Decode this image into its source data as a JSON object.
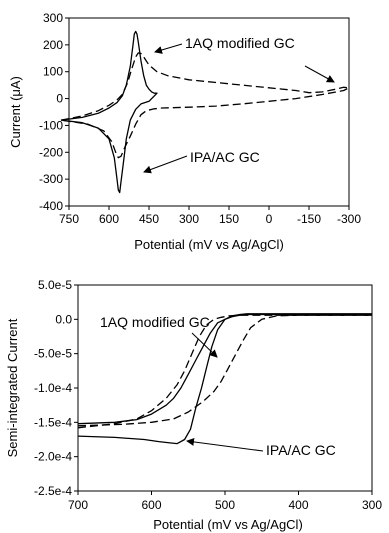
{
  "chart_data": [
    {
      "type": "line",
      "xlabel": "Potential (mV vs Ag/AgCl)",
      "ylabel": "Current (μA)",
      "xlim": [
        750,
        -300
      ],
      "ylim": [
        -400,
        300
      ],
      "x_ticks": [
        750,
        600,
        450,
        300,
        150,
        0,
        -150,
        -300
      ],
      "y_ticks": [
        300,
        200,
        100,
        0,
        -100,
        -200,
        -300,
        -400
      ],
      "x_tick_labels": [
        "750",
        "600",
        "450",
        "300",
        "150",
        "0",
        "-150",
        "-300"
      ],
      "y_tick_labels": [
        "300",
        "200",
        "100",
        "0",
        "-100",
        "-200",
        "-300",
        "-400"
      ],
      "grid": false,
      "annotations": [
        "1AQ modified GC",
        "IPA/AC GC"
      ],
      "series": [
        {
          "style": "dashed",
          "x": [
            780,
            700,
            640,
            600,
            570,
            550,
            530,
            515,
            500,
            490,
            480,
            470,
            460,
            450,
            420,
            380,
            300,
            150,
            0,
            -100,
            -150,
            -200,
            -250,
            -280,
            -300,
            -280,
            -200,
            -100,
            0,
            100,
            200,
            300,
            400,
            430,
            460,
            480,
            500,
            520,
            540,
            555,
            565,
            575,
            590,
            620,
            680,
            780
          ],
          "y": [
            -80,
            -65,
            -45,
            -25,
            -5,
            15,
            60,
            110,
            155,
            170,
            168,
            155,
            140,
            125,
            100,
            85,
            70,
            55,
            40,
            30,
            22,
            25,
            35,
            42,
            40,
            30,
            15,
            0,
            -10,
            -20,
            -28,
            -32,
            -35,
            -38,
            -45,
            -60,
            -95,
            -140,
            -180,
            -215,
            -220,
            -200,
            -160,
            -120,
            -95,
            -80
          ]
        },
        {
          "style": "solid",
          "x": [
            780,
            700,
            640,
            600,
            570,
            550,
            535,
            520,
            510,
            505,
            500,
            495,
            490,
            480,
            470,
            460,
            450,
            440,
            430,
            420,
            450,
            480,
            500,
            520,
            535,
            545,
            555,
            560,
            565,
            570,
            580,
            600,
            640,
            700,
            780
          ],
          "y": [
            -80,
            -70,
            -55,
            -35,
            -15,
            10,
            50,
            120,
            200,
            240,
            250,
            240,
            210,
            140,
            85,
            50,
            35,
            25,
            20,
            20,
            -10,
            -20,
            -40,
            -80,
            -150,
            -230,
            -310,
            -350,
            -340,
            -300,
            -220,
            -150,
            -110,
            -90,
            -80
          ]
        }
      ]
    },
    {
      "type": "line",
      "xlabel": "Potential (mV vs Ag/AgCl)",
      "ylabel": "Semi-integrated Current",
      "xlim": [
        700,
        300
      ],
      "ylim": [
        -0.00025,
        5e-05
      ],
      "x_ticks": [
        700,
        600,
        500,
        400,
        300
      ],
      "y_ticks": [
        5e-05,
        0,
        -5e-05,
        -0.0001,
        -0.00015,
        -0.0002,
        -0.00025
      ],
      "x_tick_labels": [
        "700",
        "600",
        "500",
        "400",
        "300"
      ],
      "y_tick_labels": [
        "5.0e-5",
        "0.0",
        "-5.0e-5",
        "-1.0e-4",
        "-1.5e-4",
        "-2.0e-4",
        "-2.5e-4"
      ],
      "grid": false,
      "annotations": [
        "1AQ modified GC",
        "IPA/AC GC"
      ],
      "series": [
        {
          "style": "dashed",
          "x": [
            700,
            650,
            620,
            600,
            580,
            565,
            555,
            545,
            535,
            525,
            515,
            505,
            495,
            480,
            460,
            440,
            420,
            400,
            350,
            300
          ],
          "y": [
            -0.000158,
            -0.000152,
            -0.000145,
            -0.000133,
            -0.000115,
            -9.5e-05,
            -7.5e-05,
            -5e-05,
            -2.5e-05,
            -8e-06,
            0.0,
            3e-06,
            5e-06,
            6e-06,
            6e-06,
            6e-06,
            6e-06,
            6e-06,
            6e-06,
            6e-06
          ]
        },
        {
          "style": "dashed",
          "x": [
            700,
            640,
            600,
            570,
            550,
            530,
            515,
            505,
            495,
            485,
            475,
            465,
            450,
            430,
            400,
            350,
            300
          ],
          "y": [
            -0.000155,
            -0.000153,
            -0.00015,
            -0.000145,
            -0.000135,
            -0.00012,
            -0.000105,
            -9e-05,
            -7e-05,
            -5e-05,
            -3e-05,
            -1.2e-05,
            0.0,
            5e-06,
            6e-06,
            6e-06,
            6e-06
          ]
        },
        {
          "style": "solid",
          "x": [
            700,
            650,
            620,
            600,
            580,
            570,
            560,
            550,
            540,
            530,
            520,
            510,
            500,
            490,
            480,
            470,
            460,
            440,
            400,
            350,
            300
          ],
          "y": [
            -0.000152,
            -0.00015,
            -0.000146,
            -0.000138,
            -0.000125,
            -0.000115,
            -0.0001,
            -8e-05,
            -6e-05,
            -4e-05,
            -2e-05,
            -5e-06,
            0.0,
            4e-06,
            6e-06,
            7e-06,
            7e-06,
            7e-06,
            7e-06,
            7e-06,
            7e-06
          ]
        },
        {
          "style": "solid",
          "x": [
            700,
            650,
            610,
            590,
            575,
            565,
            555,
            547,
            540,
            532,
            525,
            518,
            510,
            500,
            490,
            480,
            470,
            460,
            440,
            400,
            350,
            300
          ],
          "y": [
            -0.00017,
            -0.000172,
            -0.000175,
            -0.000178,
            -0.00018,
            -0.000181,
            -0.000175,
            -0.00016,
            -0.00013,
            -0.0001,
            -7e-05,
            -4e-05,
            -1.5e-05,
            0.0,
            5e-06,
            7e-06,
            8e-06,
            8e-06,
            8e-06,
            8e-06,
            8e-06,
            8e-06
          ]
        }
      ]
    }
  ]
}
